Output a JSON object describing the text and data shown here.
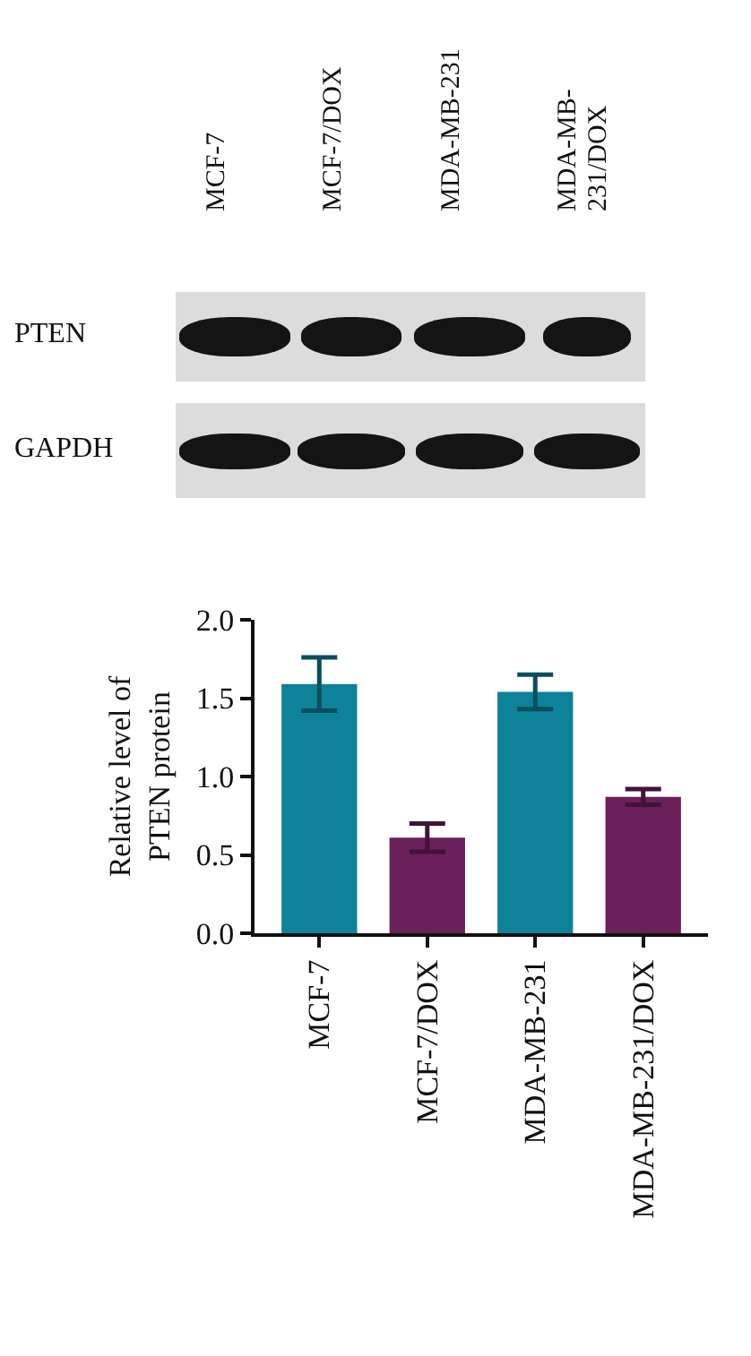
{
  "chart_data": {
    "type": "bar",
    "ylabel": "Relative level of\nPTEN protein",
    "categories": [
      "MCF-7",
      "MCF-7/DOX",
      "MDA-MB-231",
      "MDA-MB-231/DOX"
    ],
    "series": [
      {
        "colors": [
          "#0e8299",
          "#6b1f5b",
          "#0e8299",
          "#6b1f5b"
        ],
        "values": [
          1.59,
          0.61,
          1.54,
          0.87
        ],
        "errors": [
          0.17,
          0.09,
          0.11,
          0.05
        ]
      }
    ],
    "ylim": [
      0,
      2
    ],
    "yticks": [
      {
        "value": 0,
        "label": "0.0"
      },
      {
        "value": 0.5,
        "label": "0.5"
      },
      {
        "value": 1,
        "label": "1.0"
      },
      {
        "value": 1.5,
        "label": "1.5"
      },
      {
        "value": 2,
        "label": "2.0"
      }
    ],
    "annotations": [
      "PTEN",
      "GAPDH"
    ],
    "grid": false
  }
}
